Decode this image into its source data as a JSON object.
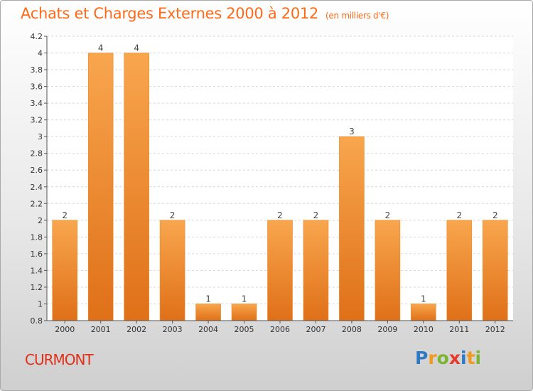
{
  "header": {
    "title": "Achats et Charges Externes 2000 à 2012",
    "subtitle": "(en milliers d'€)"
  },
  "footer": {
    "commune": "CURMONT",
    "brand_letters": [
      "P",
      "r",
      "o",
      "x",
      "i",
      "t",
      "i"
    ],
    "brand_colors": [
      "#2f78c4",
      "#f39a1e",
      "#7cb532",
      "#e63a2d",
      "#2f78c4",
      "#f39a1e",
      "#7cb532"
    ]
  },
  "colors": {
    "bar_light": "#f8a64e",
    "bar_dark": "#df7018",
    "title": "#ff6a1a",
    "commune": "#e0301a"
  },
  "chart_data": {
    "type": "bar",
    "categories": [
      "2000",
      "2001",
      "2002",
      "2003",
      "2004",
      "2005",
      "2006",
      "2007",
      "2008",
      "2009",
      "2010",
      "2011",
      "2012"
    ],
    "values": [
      2,
      4,
      4,
      2,
      1,
      1,
      2,
      2,
      3,
      2,
      1,
      2,
      2
    ],
    "data_labels": [
      "2",
      "4",
      "4",
      "2",
      "1",
      "1",
      "2",
      "2",
      "3",
      "2",
      "1",
      "2",
      "2"
    ],
    "y_ticks": [
      0.8,
      1,
      1.2,
      1.4,
      1.6,
      1.8,
      2,
      2.2,
      2.4,
      2.6,
      2.8,
      3,
      3.2,
      3.4,
      3.6,
      3.8,
      4,
      4.2
    ],
    "y_tick_labels": [
      "0.8",
      "1",
      "1.2",
      "1.4",
      "1.6",
      "1.8",
      "2",
      "2.2",
      "2.4",
      "2.6",
      "2.8",
      "3",
      "3.2",
      "3.4",
      "3.6",
      "3.8",
      "4",
      "4.2"
    ],
    "y_display_map": [
      [
        0.8,
        0.8
      ],
      [
        1,
        1
      ],
      [
        1.2,
        1.2
      ],
      [
        1.4,
        1.4
      ],
      [
        1.6,
        1.6
      ],
      [
        1.8,
        1.8
      ],
      [
        2,
        2
      ],
      [
        2.2,
        2.2
      ],
      [
        2.4,
        2.4
      ],
      [
        2.6,
        2.6
      ],
      [
        2.8,
        2.8
      ],
      [
        3,
        3
      ],
      [
        3.2,
        3.2
      ],
      [
        3.4,
        3.4
      ],
      [
        3.6,
        3.6
      ],
      [
        3.8,
        3.8
      ],
      [
        4,
        4
      ],
      [
        4.2,
        4.2
      ]
    ],
    "ylim": [
      0.8,
      4.2
    ],
    "grid": true,
    "title": "Achats et Charges Externes 2000 à 2012",
    "xlabel": "",
    "ylabel": ""
  }
}
